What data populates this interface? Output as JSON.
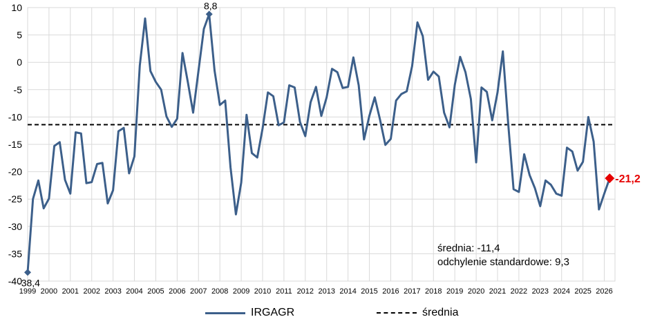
{
  "chart_data": {
    "type": "line",
    "ylim": [
      -40,
      10
    ],
    "yticks": [
      10,
      5,
      0,
      -5,
      -10,
      -15,
      -20,
      -25,
      -30,
      -35,
      -40
    ],
    "xticks": [
      "1999",
      "2000",
      "2001",
      "2002",
      "2003",
      "2004",
      "2005",
      "2006",
      "2007",
      "2008",
      "2009",
      "2010",
      "2011",
      "2012",
      "2013",
      "2014",
      "2015",
      "2016",
      "2017",
      "2018",
      "2019",
      "2020",
      "2021",
      "2022",
      "2023",
      "2024",
      "2025",
      "2026"
    ],
    "grid": true,
    "legend_position": "bottom",
    "series": [
      {
        "name": "IRGAGR",
        "color": "#3c5f8a",
        "x_start": 1999.0,
        "x_step": 0.25,
        "values": [
          -38.4,
          -25.0,
          -21.6,
          -26.7,
          -24.9,
          -15.3,
          -14.6,
          -21.5,
          -24.0,
          -12.8,
          -13.0,
          -22.1,
          -21.9,
          -18.6,
          -18.4,
          -25.8,
          -23.4,
          -12.6,
          -12.0,
          -20.3,
          -17.2,
          -0.6,
          8.0,
          -1.6,
          -3.6,
          -5.0,
          -9.9,
          -11.8,
          -10.3,
          1.7,
          -3.6,
          -9.2,
          -1.5,
          6.1,
          8.8,
          -1.5,
          -7.8,
          -7.0,
          -19.2,
          -27.8,
          -22.0,
          -9.6,
          -16.6,
          -17.4,
          -12.1,
          -5.5,
          -6.2,
          -11.5,
          -11.0,
          -4.2,
          -4.6,
          -10.9,
          -13.5,
          -7.3,
          -4.5,
          -9.8,
          -6.4,
          -1.2,
          -1.8,
          -4.7,
          -4.5,
          0.9,
          -4.2,
          -14.1,
          -9.8,
          -6.4,
          -10.5,
          -15.1,
          -14.0,
          -7.0,
          -5.8,
          -5.3,
          -0.7,
          7.3,
          4.8,
          -3.2,
          -1.7,
          -2.6,
          -9.2,
          -11.9,
          -4.1,
          1.0,
          -1.8,
          -6.7,
          -18.3,
          -4.6,
          -5.4,
          -10.6,
          -5.5,
          2.0,
          -11.3,
          -23.2,
          -23.7,
          -16.8,
          -20.6,
          -23.0,
          -26.3,
          -21.6,
          -22.4,
          -24.0,
          -24.4,
          -15.6,
          -16.3,
          -19.8,
          -18.2,
          -10.0,
          -14.5,
          -26.9,
          -24.0,
          -21.2
        ]
      },
      {
        "name": "średnia",
        "color": "#000000",
        "dashed": true,
        "value": -11.4
      }
    ],
    "point_labels": [
      {
        "index": 0,
        "text": "-38,4"
      },
      {
        "index": 34,
        "text": "8,8"
      }
    ],
    "last_label": {
      "text": "-21,2",
      "color": "#e60000"
    },
    "annotation": [
      "średnia: -11,4",
      "odchylenie standardowe: 9,3"
    ]
  },
  "legend": {
    "series_label": "IRGAGR",
    "mean_label": "średnia"
  }
}
